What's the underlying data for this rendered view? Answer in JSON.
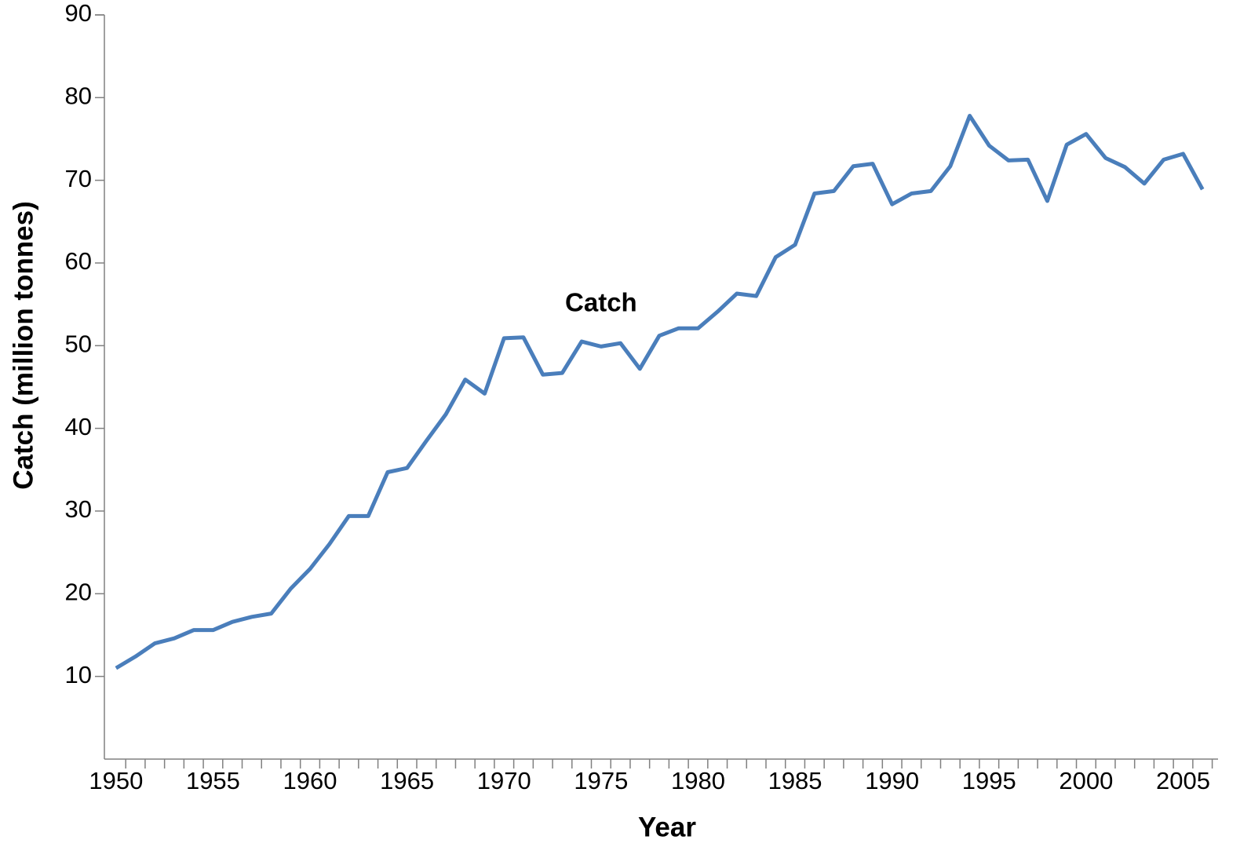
{
  "chart_data": {
    "type": "line",
    "xlabel": "Year",
    "ylabel": "Catch (million tonnes)",
    "annotations": [
      {
        "text": "Catch",
        "x": 1975,
        "y": 55
      }
    ],
    "x": [
      1950,
      1951,
      1952,
      1953,
      1954,
      1955,
      1956,
      1957,
      1958,
      1959,
      1960,
      1961,
      1962,
      1963,
      1964,
      1965,
      1966,
      1967,
      1968,
      1969,
      1970,
      1971,
      1972,
      1973,
      1974,
      1975,
      1976,
      1977,
      1978,
      1979,
      1980,
      1981,
      1982,
      1983,
      1984,
      1985,
      1986,
      1987,
      1988,
      1989,
      1990,
      1991,
      1992,
      1993,
      1994,
      1995,
      1996,
      1997,
      1998,
      1999,
      2000,
      2001,
      2002,
      2003,
      2004,
      2005,
      2006
    ],
    "series": [
      {
        "name": "Catch",
        "color": "#4a7ebb",
        "values": [
          11.0,
          12.4,
          14.0,
          14.6,
          15.6,
          15.6,
          16.6,
          17.2,
          17.6,
          20.6,
          23.0,
          26.0,
          29.4,
          29.4,
          34.7,
          35.2,
          38.5,
          41.7,
          45.9,
          44.2,
          50.9,
          51.0,
          46.5,
          46.7,
          50.5,
          49.9,
          50.3,
          47.2,
          51.2,
          52.1,
          52.1,
          54.1,
          56.3,
          56.0,
          60.7,
          62.2,
          68.4,
          68.7,
          71.7,
          72.0,
          67.1,
          68.4,
          68.7,
          71.7,
          77.8,
          74.2,
          72.4,
          72.5,
          67.5,
          74.3,
          75.6,
          72.7,
          71.6,
          69.6,
          72.5,
          73.2,
          68.9
        ]
      }
    ],
    "xlim": [
      1949.4,
      2006.8
    ],
    "xticks": [
      1950,
      1955,
      1960,
      1965,
      1970,
      1975,
      1980,
      1985,
      1990,
      1995,
      2000,
      2005
    ],
    "ylim": [
      0,
      90
    ],
    "yticks": [
      10,
      20,
      30,
      40,
      50,
      60,
      70,
      80,
      90
    ],
    "grid": false
  }
}
